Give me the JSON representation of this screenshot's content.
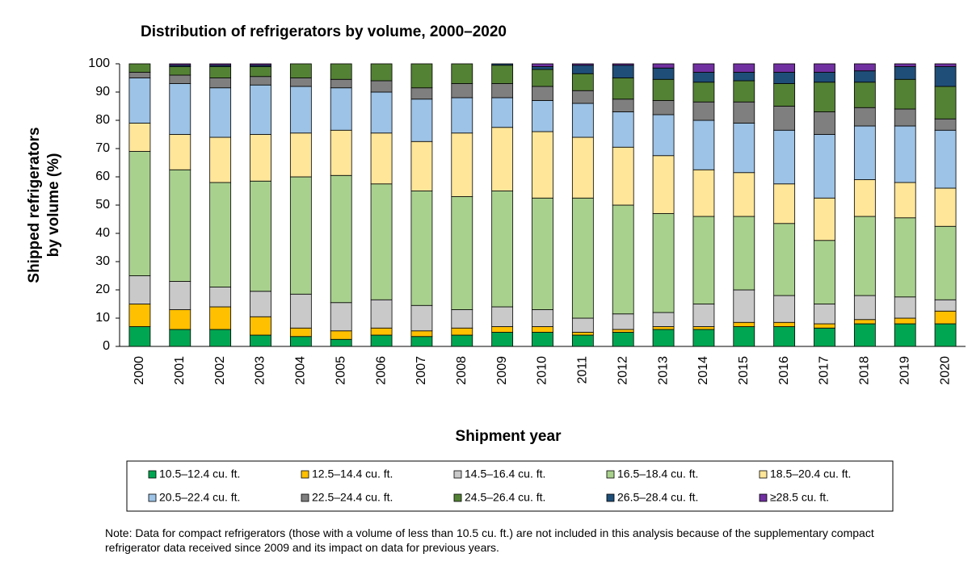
{
  "chart_data": {
    "type": "stacked_bar",
    "title": "Distribution of refrigerators by volume, 2000–2020",
    "x_label": "Shipment year",
    "y_label": [
      "Shipped refrigerators",
      "by volume (%)"
    ],
    "note": "Note: Data for compact refrigerators (those with a volume of less than 10.5 cu. ft.) are not included in this analysis because of the supplementary compact refrigerator data received since 2009 and its impact on data for previous years.",
    "categories": [
      "2000",
      "2001",
      "2002",
      "2003",
      "2004",
      "2005",
      "2006",
      "2007",
      "2008",
      "2009",
      "2010",
      "2011",
      "2012",
      "2013",
      "2014",
      "2015",
      "2016",
      "2017",
      "2018",
      "2019",
      "2020"
    ],
    "ylim": [
      0,
      100
    ],
    "yticks": [
      0,
      10,
      20,
      30,
      40,
      50,
      60,
      70,
      80,
      90,
      100
    ],
    "grid": false,
    "legend": "bottom",
    "series": [
      {
        "name": "10.5–12.4 cu. ft.",
        "color": "#00a651",
        "values": [
          7,
          6,
          6,
          4,
          3.5,
          2.5,
          4,
          3.5,
          4,
          5,
          5,
          4,
          5,
          6,
          6,
          7,
          7,
          6.5,
          8,
          8,
          8
        ]
      },
      {
        "name": "12.5–14.4 cu. ft.",
        "color": "#ffc000",
        "values": [
          8,
          7,
          8,
          6.5,
          3,
          3,
          2.5,
          2,
          2.5,
          2,
          2,
          1,
          1,
          1,
          1,
          1.5,
          1.5,
          1.5,
          1.5,
          2,
          4.5
        ]
      },
      {
        "name": "14.5–16.4 cu. ft.",
        "color": "#c9c9c9",
        "values": [
          10,
          10,
          7,
          9,
          12,
          10,
          10,
          9,
          6.5,
          7,
          6,
          5,
          5.5,
          5,
          8,
          11.5,
          9.5,
          7,
          8.5,
          7.5,
          4
        ]
      },
      {
        "name": "16.5–18.4 cu. ft.",
        "color": "#a9d18e",
        "values": [
          44,
          39.5,
          37,
          39,
          41.5,
          45,
          41,
          40.5,
          40,
          41,
          39.5,
          42.5,
          38.5,
          35,
          31,
          26,
          25.5,
          22.5,
          28,
          28,
          26
        ]
      },
      {
        "name": "18.5–20.4 cu. ft.",
        "color": "#ffe699",
        "values": [
          10,
          12.5,
          16,
          16.5,
          15.5,
          16,
          18,
          17.5,
          22.5,
          22.5,
          23.5,
          21.5,
          20.5,
          20.5,
          16.5,
          15.5,
          14,
          15,
          13,
          12.5,
          13.5
        ]
      },
      {
        "name": "20.5–22.4 cu. ft.",
        "color": "#9dc3e6",
        "values": [
          16,
          18,
          17.5,
          17.5,
          16.5,
          15,
          14.5,
          15,
          12.5,
          10.5,
          11,
          12,
          12.5,
          14.5,
          17.5,
          17.5,
          19,
          22.5,
          19,
          20,
          20.5
        ]
      },
      {
        "name": "22.5–24.4 cu. ft.",
        "color": "#7f7f7f",
        "values": [
          2,
          3,
          3.5,
          3,
          3,
          3,
          4,
          4,
          5,
          5,
          5,
          4.5,
          4.5,
          5,
          6.5,
          7.5,
          8.5,
          8,
          6.5,
          6,
          4
        ]
      },
      {
        "name": "24.5–26.4 cu. ft.",
        "color": "#548235",
        "values": [
          3,
          3,
          4,
          3.5,
          5,
          5.5,
          6,
          8.5,
          7,
          6.5,
          6,
          6,
          7.5,
          7.5,
          7,
          7.5,
          8,
          10.5,
          9,
          10.5,
          11.5
        ]
      },
      {
        "name": "26.5–28.4 cu. ft.",
        "color": "#1f4e79",
        "values": [
          0,
          0.5,
          0.5,
          0.5,
          0,
          0,
          0,
          0,
          0,
          0.5,
          1,
          3,
          4.5,
          4,
          3.5,
          3,
          4,
          3.5,
          4,
          4.5,
          7
        ]
      },
      {
        "name": "≥28.5 cu. ft.",
        "color": "#7030a0",
        "values": [
          0,
          0.5,
          0.5,
          0.5,
          0,
          0,
          0,
          0,
          0,
          0,
          1,
          0.5,
          0.5,
          1.5,
          3,
          3,
          3,
          3,
          2.5,
          1,
          1
        ]
      }
    ]
  }
}
